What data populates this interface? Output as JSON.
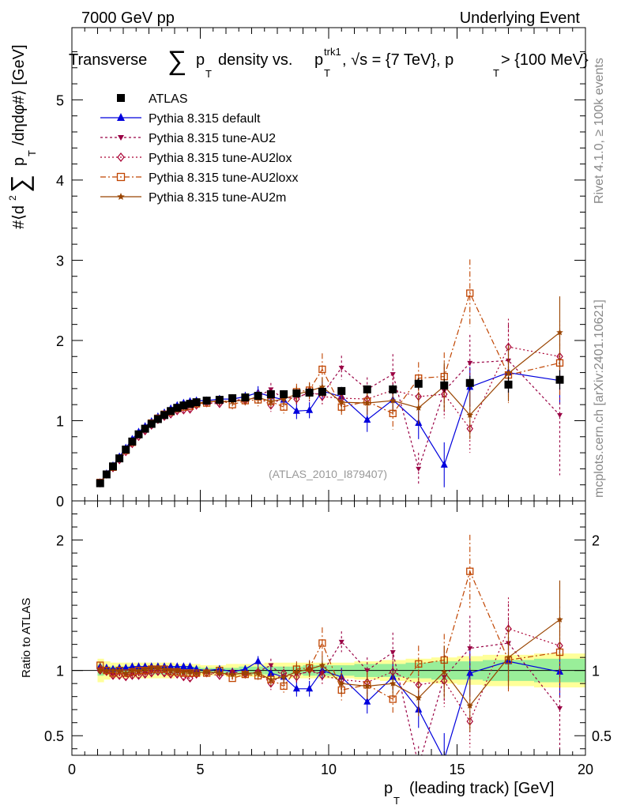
{
  "header": {
    "left": "7000 GeV pp",
    "right": "Underlying Event",
    "title_lead": "Transverse",
    "title_mid": "density vs.",
    "title_var": "p",
    "title_var_sub": "T",
    "title_var_sup": "trk1",
    "title_tail": ", √s = {7 TeV}, p",
    "title_tail_sub": "T",
    "title_tail2": " > {100 MeV}"
  },
  "side": {
    "rivet": "Rivet 4.1.0, ≥ 100k events",
    "mcplots": "mcplots.cern.ch [arXiv:2401.10621]"
  },
  "watermark": "(ATLAS_2010_I879407)",
  "labels": {
    "ylabel_prefix": "#⟨d",
    "ylabel_mid": "p",
    "ylabel_suffix": "/dηdφ#⟩ [GeV]",
    "ylabel_sub": "T",
    "ratio_ylabel": "Ratio to ATLAS",
    "xlabel": "(leading track) [GeV]",
    "xlabel_p": "p",
    "xlabel_sub": "T"
  },
  "legend": [
    {
      "key": "atlas",
      "label": "ATLAS",
      "color": "#000000",
      "marker": "square",
      "dash": ""
    },
    {
      "key": "default",
      "label": "Pythia 8.315 default",
      "color": "#0000dd",
      "marker": "triangle-up",
      "dash": ""
    },
    {
      "key": "au2",
      "label": "Pythia 8.315 tune-AU2",
      "color": "#990044",
      "marker": "triangle-down",
      "dash": "3,3"
    },
    {
      "key": "au2lox",
      "label": "Pythia 8.315 tune-AU2lox",
      "color": "#aa0033",
      "marker": "diamond-open",
      "dash": "2,3"
    },
    {
      "key": "au2loxx",
      "label": "Pythia 8.315 tune-AU2loxx",
      "color": "#c04400",
      "marker": "square-open",
      "dash": "7,3,2,3"
    },
    {
      "key": "au2m",
      "label": "Pythia 8.315 tune-AU2m",
      "color": "#994400",
      "marker": "star",
      "dash": ""
    }
  ],
  "chart_data": {
    "type": "line",
    "x": [
      1.1,
      1.35,
      1.6,
      1.85,
      2.1,
      2.35,
      2.6,
      2.85,
      3.1,
      3.35,
      3.6,
      3.85,
      4.1,
      4.35,
      4.6,
      4.85,
      5.25,
      5.75,
      6.25,
      6.75,
      7.25,
      7.75,
      8.25,
      8.75,
      9.25,
      9.75,
      10.5,
      11.5,
      12.5,
      13.5,
      14.5,
      15.5,
      17.0,
      19.0
    ],
    "xlim": [
      0,
      20
    ],
    "main": {
      "ylim": [
        0,
        5.9
      ],
      "yticks": [
        0,
        1,
        2,
        3,
        4,
        5
      ],
      "series": [
        {
          "key": "atlas",
          "values": [
            0.22,
            0.33,
            0.43,
            0.53,
            0.64,
            0.74,
            0.83,
            0.9,
            0.96,
            1.02,
            1.07,
            1.12,
            1.16,
            1.19,
            1.21,
            1.23,
            1.25,
            1.26,
            1.28,
            1.29,
            1.31,
            1.33,
            1.33,
            1.34,
            1.35,
            1.36,
            1.37,
            1.39,
            1.39,
            1.46,
            1.44,
            1.47,
            1.45,
            1.51
          ],
          "errors": [
            0.01,
            0.01,
            0.01,
            0.01,
            0.01,
            0.01,
            0.01,
            0.01,
            0.01,
            0.01,
            0.01,
            0.01,
            0.01,
            0.01,
            0.01,
            0.01,
            0.01,
            0.02,
            0.02,
            0.02,
            0.02,
            0.03,
            0.03,
            0.03,
            0.04,
            0.04,
            0.05,
            0.05,
            0.06,
            0.07,
            0.08,
            0.09,
            0.1,
            0.12
          ]
        },
        {
          "key": "default",
          "values": [
            0.23,
            0.34,
            0.44,
            0.55,
            0.66,
            0.77,
            0.86,
            0.93,
            0.99,
            1.05,
            1.1,
            1.15,
            1.19,
            1.22,
            1.24,
            1.25,
            1.25,
            1.27,
            1.27,
            1.3,
            1.35,
            1.3,
            1.26,
            1.12,
            1.13,
            1.37,
            1.3,
            1.01,
            1.26,
            0.97,
            0.45,
            1.42,
            1.6,
            1.5
          ],
          "errors": [
            0.02,
            0.02,
            0.02,
            0.02,
            0.02,
            0.02,
            0.02,
            0.03,
            0.03,
            0.03,
            0.03,
            0.03,
            0.03,
            0.04,
            0.04,
            0.04,
            0.05,
            0.05,
            0.06,
            0.06,
            0.08,
            0.08,
            0.08,
            0.1,
            0.1,
            0.12,
            0.12,
            0.15,
            0.15,
            0.2,
            0.28,
            0.25,
            0.28,
            0.3
          ]
        },
        {
          "key": "au2",
          "values": [
            0.22,
            0.33,
            0.42,
            0.52,
            0.62,
            0.72,
            0.81,
            0.88,
            0.95,
            1.02,
            1.07,
            1.11,
            1.15,
            1.17,
            1.19,
            1.21,
            1.24,
            1.22,
            1.27,
            1.25,
            1.3,
            1.39,
            1.27,
            1.3,
            1.34,
            1.33,
            1.66,
            1.39,
            1.58,
            0.4,
            1.37,
            1.72,
            1.75,
            1.07
          ],
          "errors": [
            0.02,
            0.02,
            0.02,
            0.02,
            0.02,
            0.02,
            0.02,
            0.03,
            0.03,
            0.03,
            0.03,
            0.03,
            0.03,
            0.04,
            0.04,
            0.04,
            0.05,
            0.05,
            0.06,
            0.06,
            0.08,
            0.08,
            0.08,
            0.1,
            0.1,
            0.12,
            0.15,
            0.15,
            0.25,
            0.2,
            0.3,
            0.35,
            0.45,
            0.75
          ]
        },
        {
          "key": "au2lox",
          "values": [
            0.22,
            0.33,
            0.41,
            0.51,
            0.61,
            0.71,
            0.8,
            0.87,
            0.94,
            1.01,
            1.05,
            1.08,
            1.12,
            1.13,
            1.14,
            1.19,
            1.22,
            1.21,
            1.26,
            1.25,
            1.3,
            1.19,
            1.3,
            1.27,
            1.37,
            1.3,
            1.28,
            1.27,
            1.38,
            1.3,
            1.33,
            0.9,
            1.92,
            1.8
          ],
          "errors": [
            0.02,
            0.02,
            0.02,
            0.02,
            0.02,
            0.02,
            0.02,
            0.03,
            0.03,
            0.03,
            0.03,
            0.03,
            0.03,
            0.04,
            0.04,
            0.04,
            0.05,
            0.05,
            0.06,
            0.06,
            0.08,
            0.08,
            0.08,
            0.1,
            0.1,
            0.12,
            0.12,
            0.15,
            0.2,
            0.2,
            0.3,
            0.3,
            0.35,
            0.45
          ]
        },
        {
          "key": "au2loxx",
          "values": [
            0.23,
            0.33,
            0.42,
            0.53,
            0.63,
            0.73,
            0.83,
            0.9,
            0.97,
            1.03,
            1.08,
            1.11,
            1.15,
            1.17,
            1.18,
            1.21,
            1.22,
            1.26,
            1.2,
            1.25,
            1.26,
            1.24,
            1.17,
            1.36,
            1.38,
            1.64,
            1.17,
            1.24,
            1.09,
            1.53,
            1.55,
            2.59,
            1.57,
            1.72
          ],
          "errors": [
            0.02,
            0.02,
            0.02,
            0.02,
            0.02,
            0.02,
            0.02,
            0.03,
            0.03,
            0.03,
            0.03,
            0.03,
            0.03,
            0.04,
            0.04,
            0.04,
            0.05,
            0.05,
            0.06,
            0.06,
            0.08,
            0.08,
            0.08,
            0.1,
            0.1,
            0.2,
            0.12,
            0.15,
            0.2,
            0.2,
            0.3,
            0.42,
            0.35,
            0.4
          ]
        },
        {
          "key": "au2m",
          "values": [
            0.22,
            0.33,
            0.43,
            0.53,
            0.63,
            0.74,
            0.83,
            0.91,
            0.98,
            1.04,
            1.08,
            1.12,
            1.16,
            1.18,
            1.2,
            1.21,
            1.24,
            1.24,
            1.24,
            1.26,
            1.29,
            1.24,
            1.27,
            1.33,
            1.37,
            1.42,
            1.23,
            1.22,
            1.25,
            1.16,
            1.43,
            1.07,
            1.59,
            2.1
          ],
          "errors": [
            0.02,
            0.02,
            0.02,
            0.02,
            0.02,
            0.02,
            0.02,
            0.03,
            0.03,
            0.03,
            0.03,
            0.03,
            0.03,
            0.04,
            0.04,
            0.04,
            0.05,
            0.05,
            0.06,
            0.06,
            0.08,
            0.08,
            0.08,
            0.1,
            0.1,
            0.12,
            0.12,
            0.15,
            0.15,
            0.2,
            0.3,
            0.3,
            0.35,
            0.45
          ]
        }
      ]
    },
    "ratio": {
      "ylim": [
        0.35,
        2.3
      ],
      "yticks": [
        0.5,
        1,
        2
      ],
      "band_x_edges": [
        1.0,
        1.25,
        1.5,
        1.75,
        2.0,
        2.25,
        2.5,
        2.75,
        3.0,
        3.25,
        3.5,
        3.75,
        4.0,
        4.25,
        4.5,
        4.75,
        5.0,
        5.5,
        6.0,
        6.5,
        7.0,
        7.5,
        8.0,
        8.5,
        9.0,
        9.5,
        10.0,
        11.0,
        12.0,
        13.0,
        14.0,
        15.0,
        16.0,
        18.0,
        20.0
      ],
      "band_stat": [
        0.04,
        0.03,
        0.03,
        0.03,
        0.03,
        0.03,
        0.03,
        0.03,
        0.03,
        0.03,
        0.03,
        0.03,
        0.03,
        0.03,
        0.03,
        0.03,
        0.02,
        0.02,
        0.02,
        0.03,
        0.03,
        0.03,
        0.03,
        0.03,
        0.04,
        0.04,
        0.04,
        0.05,
        0.05,
        0.06,
        0.07,
        0.07,
        0.08,
        0.09
      ],
      "band_total": [
        0.09,
        0.07,
        0.06,
        0.06,
        0.06,
        0.06,
        0.06,
        0.06,
        0.06,
        0.06,
        0.06,
        0.06,
        0.05,
        0.05,
        0.05,
        0.05,
        0.04,
        0.04,
        0.05,
        0.05,
        0.05,
        0.06,
        0.06,
        0.06,
        0.06,
        0.06,
        0.06,
        0.07,
        0.08,
        0.09,
        0.1,
        0.11,
        0.12,
        0.13
      ],
      "series": [
        {
          "key": "default",
          "values": [
            1.03,
            1.02,
            1.01,
            1.02,
            1.02,
            1.03,
            1.03,
            1.03,
            1.03,
            1.03,
            1.03,
            1.03,
            1.03,
            1.03,
            1.03,
            1.01,
            1.0,
            1.01,
            0.99,
            1.01,
            1.07,
            0.98,
            0.95,
            0.86,
            0.86,
            1.0,
            0.95,
            0.76,
            0.95,
            0.7,
            0.32,
            0.98,
            1.07,
            0.99
          ],
          "errors": [
            0.02,
            0.02,
            0.02,
            0.02,
            0.02,
            0.02,
            0.02,
            0.02,
            0.02,
            0.02,
            0.02,
            0.02,
            0.02,
            0.02,
            0.02,
            0.02,
            0.03,
            0.03,
            0.03,
            0.03,
            0.04,
            0.05,
            0.05,
            0.06,
            0.06,
            0.07,
            0.07,
            0.09,
            0.1,
            0.14,
            0.2,
            0.17,
            0.18,
            0.2
          ]
        },
        {
          "key": "au2",
          "values": [
            1.01,
            0.99,
            0.97,
            0.98,
            0.97,
            0.97,
            0.98,
            0.98,
            0.99,
            1.0,
            1.0,
            0.99,
            0.99,
            0.99,
            0.98,
            0.98,
            0.99,
            0.97,
            0.99,
            0.97,
            0.99,
            1.04,
            0.95,
            0.97,
            0.99,
            0.98,
            1.22,
            1.0,
            1.14,
            0.27,
            0.95,
            1.17,
            1.21,
            0.71
          ],
          "errors": [
            0.02,
            0.02,
            0.02,
            0.02,
            0.02,
            0.02,
            0.02,
            0.02,
            0.02,
            0.02,
            0.02,
            0.02,
            0.02,
            0.02,
            0.02,
            0.02,
            0.03,
            0.03,
            0.03,
            0.03,
            0.04,
            0.05,
            0.05,
            0.06,
            0.06,
            0.07,
            0.08,
            0.1,
            0.15,
            0.15,
            0.2,
            0.25,
            0.3,
            0.5
          ]
        },
        {
          "key": "au2lox",
          "values": [
            1.0,
            0.99,
            0.96,
            0.96,
            0.95,
            0.96,
            0.96,
            0.97,
            0.98,
            0.99,
            0.98,
            0.97,
            0.97,
            0.95,
            0.94,
            0.97,
            0.98,
            0.96,
            0.98,
            0.97,
            0.99,
            0.9,
            0.98,
            0.95,
            1.01,
            0.96,
            0.93,
            0.91,
            0.99,
            0.89,
            0.92,
            0.61,
            1.32,
            1.19
          ],
          "errors": [
            0.02,
            0.02,
            0.02,
            0.02,
            0.02,
            0.02,
            0.02,
            0.02,
            0.02,
            0.02,
            0.02,
            0.02,
            0.02,
            0.02,
            0.02,
            0.02,
            0.03,
            0.03,
            0.03,
            0.03,
            0.04,
            0.05,
            0.05,
            0.06,
            0.06,
            0.07,
            0.08,
            0.1,
            0.13,
            0.14,
            0.2,
            0.2,
            0.24,
            0.3
          ]
        },
        {
          "key": "au2loxx",
          "values": [
            1.04,
            1.0,
            0.98,
            1.0,
            0.98,
            0.99,
            1.0,
            1.0,
            1.01,
            1.01,
            1.01,
            0.99,
            0.99,
            0.98,
            0.98,
            0.98,
            0.98,
            1.0,
            0.94,
            0.97,
            0.96,
            0.93,
            0.88,
            1.01,
            1.02,
            1.21,
            0.85,
            0.89,
            0.78,
            1.05,
            1.08,
            1.76,
            1.08,
            1.14
          ],
          "errors": [
            0.02,
            0.02,
            0.02,
            0.02,
            0.02,
            0.02,
            0.02,
            0.02,
            0.02,
            0.02,
            0.02,
            0.02,
            0.02,
            0.02,
            0.02,
            0.02,
            0.03,
            0.03,
            0.03,
            0.03,
            0.04,
            0.05,
            0.05,
            0.06,
            0.06,
            0.12,
            0.08,
            0.1,
            0.12,
            0.14,
            0.2,
            0.28,
            0.24,
            0.26
          ]
        },
        {
          "key": "au2m",
          "values": [
            1.0,
            1.0,
            1.0,
            1.0,
            0.98,
            1.0,
            1.0,
            1.01,
            1.02,
            1.02,
            1.01,
            1.0,
            1.0,
            0.99,
            0.99,
            0.98,
            0.99,
            0.98,
            0.97,
            0.98,
            0.98,
            0.93,
            0.95,
            0.99,
            1.01,
            1.04,
            0.9,
            0.88,
            0.9,
            0.79,
            0.99,
            0.73,
            1.1,
            1.39
          ],
          "errors": [
            0.02,
            0.02,
            0.02,
            0.02,
            0.02,
            0.02,
            0.02,
            0.02,
            0.02,
            0.02,
            0.02,
            0.02,
            0.02,
            0.02,
            0.02,
            0.02,
            0.03,
            0.03,
            0.03,
            0.03,
            0.04,
            0.05,
            0.05,
            0.06,
            0.06,
            0.07,
            0.08,
            0.1,
            0.1,
            0.14,
            0.2,
            0.2,
            0.24,
            0.3
          ]
        }
      ]
    },
    "xticks": [
      0,
      5,
      10,
      15,
      20
    ]
  }
}
